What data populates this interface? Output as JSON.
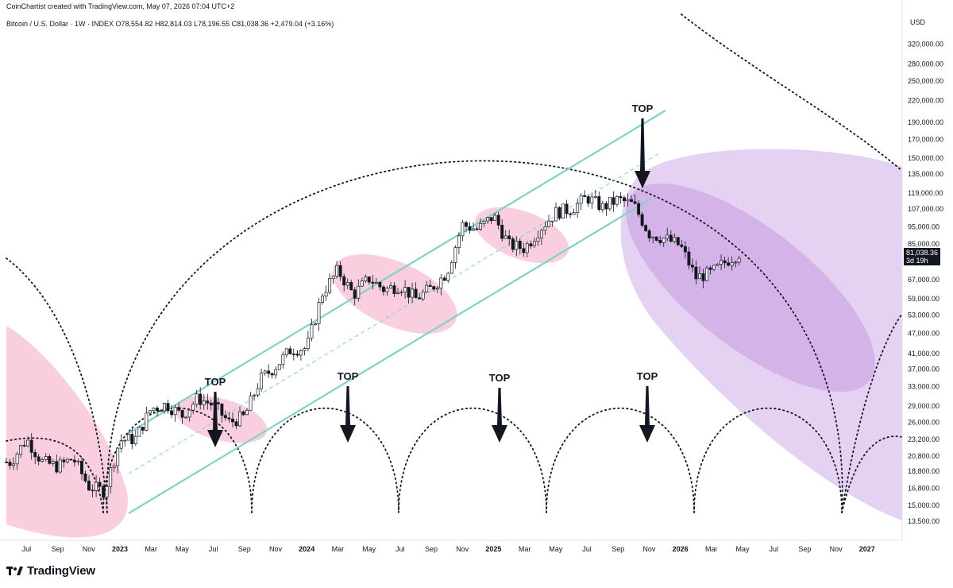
{
  "header": {
    "attribution": "CoinChartist created with TradingView.com, May 07, 2026 07:04 UTC+2",
    "symbol_line": "Bitcoin / U.S. Dollar · 1W · INDEX  O78,554.82  H82,814.03  L78,196.55  C81,038.36  +2,479.04 (+3.16%)"
  },
  "branding": {
    "logo_text": "TradingView"
  },
  "colors": {
    "channel": "#7fd3c5",
    "pink_ellipse": "#f4a7c4",
    "purple_ellipse": "#b57bd6",
    "candle_up": "#ffffff",
    "candle_down": "#131722"
  },
  "price_badge": {
    "price": "81,038.36",
    "countdown": "3d 19h"
  },
  "chart_data": {
    "type": "candlestick",
    "y_axis_label": "USD",
    "y_scale": "log",
    "ylim": [
      12500,
      380000
    ],
    "y_ticks": [
      "13,500.00",
      "15,000.00",
      "16,800.00",
      "18,800.00",
      "20,800.00",
      "23,200.00",
      "26,000.00",
      "29,000.00",
      "33,000.00",
      "37,000.00",
      "41,000.00",
      "47,000.00",
      "53,000.00",
      "59,000.00",
      "67,000.00",
      "75,000.00",
      "85,000.00",
      "95,000.00",
      "107,000.00",
      "119,000.00",
      "135,000.00",
      "150,000.00",
      "170,000.00",
      "190,000.00",
      "220,000.00",
      "250,000.00",
      "280,000.00",
      "320,000.00"
    ],
    "x_ticks": [
      "Jul",
      "Sep",
      "Nov",
      "2023",
      "Mar",
      "May",
      "Jul",
      "Sep",
      "Nov",
      "2024",
      "Mar",
      "May",
      "Jul",
      "Sep",
      "Nov",
      "2025",
      "Mar",
      "May",
      "Jul",
      "Sep",
      "Nov",
      "2026",
      "Mar",
      "May",
      "Jul",
      "Sep",
      "Nov",
      "2027"
    ],
    "annotations": [
      "TOP",
      "TOP",
      "TOP",
      "TOP",
      "TOP"
    ],
    "close_path": [
      [
        "2022-06",
        20000
      ],
      [
        "2022-07",
        23300
      ],
      [
        "2022-08",
        20000
      ],
      [
        "2022-09",
        19400
      ],
      [
        "2022-10",
        20500
      ],
      [
        "2022-11",
        17000
      ],
      [
        "2022-12",
        16500
      ],
      [
        "2023-01",
        23100
      ],
      [
        "2023-02",
        23300
      ],
      [
        "2023-03",
        28500
      ],
      [
        "2023-04",
        29300
      ],
      [
        "2023-05",
        27200
      ],
      [
        "2023-06",
        30500
      ],
      [
        "2023-07",
        29200
      ],
      [
        "2023-08",
        26000
      ],
      [
        "2023-09",
        27000
      ],
      [
        "2023-10",
        34500
      ],
      [
        "2023-11",
        37700
      ],
      [
        "2023-12",
        42300
      ],
      [
        "2024-01",
        42500
      ],
      [
        "2024-02",
        61200
      ],
      [
        "2024-03",
        71300
      ],
      [
        "2024-04",
        60600
      ],
      [
        "2024-05",
        67500
      ],
      [
        "2024-06",
        62700
      ],
      [
        "2024-07",
        64600
      ],
      [
        "2024-08",
        59000
      ],
      [
        "2024-09",
        63300
      ],
      [
        "2024-10",
        70200
      ],
      [
        "2024-11",
        96400
      ],
      [
        "2024-12",
        93400
      ],
      [
        "2025-01",
        102400
      ],
      [
        "2025-02",
        84300
      ],
      [
        "2025-03",
        82500
      ],
      [
        "2025-04",
        94200
      ],
      [
        "2025-05",
        104600
      ],
      [
        "2025-06",
        107100
      ],
      [
        "2025-07",
        115700
      ],
      [
        "2025-08",
        108200
      ],
      [
        "2025-09",
        114000
      ],
      [
        "2025-10",
        110000
      ],
      [
        "2025-11",
        91000
      ],
      [
        "2025-12",
        88000
      ],
      [
        "2026-01",
        84000
      ],
      [
        "2026-02",
        68000
      ],
      [
        "2026-03",
        70000
      ],
      [
        "2026-04",
        76000
      ],
      [
        "2026-05",
        81038
      ]
    ]
  }
}
